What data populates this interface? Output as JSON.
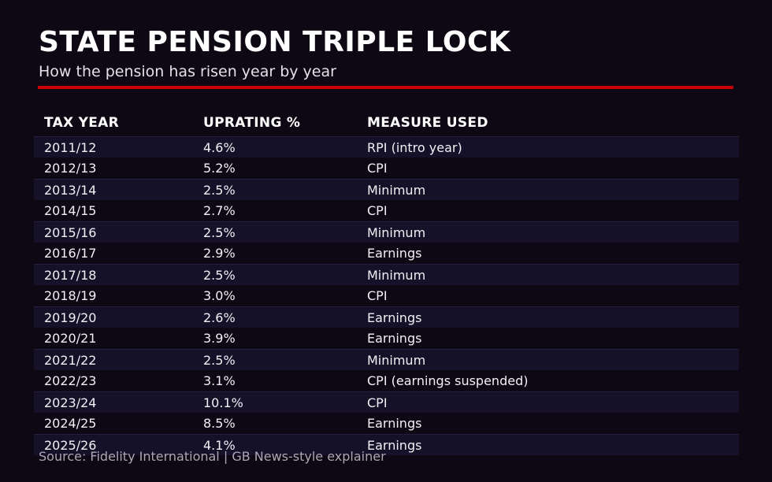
{
  "header": {
    "title": "STATE PENSION TRIPLE LOCK",
    "subtitle": "How the pension has risen year by year"
  },
  "colors": {
    "background": "#0d0814",
    "row_stripe": "#151129",
    "accent_red": "#cc0000",
    "title_text": "#ffffff",
    "cell_text": "#f2f0f4",
    "footer_text": "#aba7b3"
  },
  "chart_data": {
    "type": "table",
    "title": "STATE PENSION TRIPLE LOCK",
    "subtitle": "How the pension has risen year by year",
    "columns": [
      "TAX YEAR",
      "UPRATING %",
      "MEASURE USED"
    ],
    "rows": [
      [
        "2011/12",
        "4.6%",
        "RPI (intro year)"
      ],
      [
        "2012/13",
        "5.2%",
        "CPI"
      ],
      [
        "2013/14",
        "2.5%",
        "Minimum"
      ],
      [
        "2014/15",
        "2.7%",
        "CPI"
      ],
      [
        "2015/16",
        "2.5%",
        "Minimum"
      ],
      [
        "2016/17",
        "2.9%",
        "Earnings"
      ],
      [
        "2017/18",
        "2.5%",
        "Minimum"
      ],
      [
        "2018/19",
        "3.0%",
        "CPI"
      ],
      [
        "2019/20",
        "2.6%",
        "Earnings"
      ],
      [
        "2020/21",
        "3.9%",
        "Earnings"
      ],
      [
        "2021/22",
        "2.5%",
        "Minimum"
      ],
      [
        "2022/23",
        "3.1%",
        "CPI (earnings suspended)"
      ],
      [
        "2023/24",
        "10.1%",
        "CPI"
      ],
      [
        "2024/25",
        "8.5%",
        "Earnings"
      ],
      [
        "2025/26",
        "4.1%",
        "Earnings"
      ]
    ],
    "uprating_values_percent": [
      4.6,
      5.2,
      2.5,
      2.7,
      2.5,
      2.9,
      2.5,
      3.0,
      2.6,
      3.9,
      2.5,
      3.1,
      10.1,
      8.5,
      4.1
    ],
    "layout": {
      "striped_rows": "odd rows starting with first data row",
      "grid": "off",
      "legend": "none"
    }
  },
  "footer": {
    "source": "Source: Fidelity International | GB News-style explainer"
  }
}
